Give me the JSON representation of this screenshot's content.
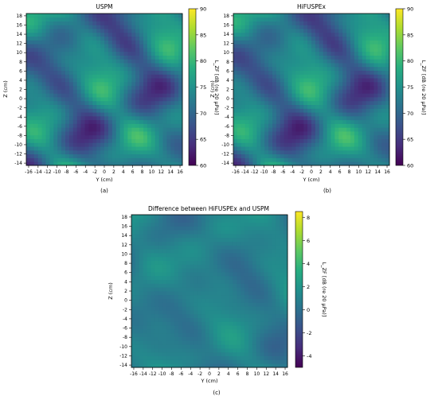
{
  "chart_data": [
    {
      "type": "heatmap",
      "panel_label": "(a)",
      "title": "USPM",
      "xlabel": "Y (cm)",
      "ylabel": "Z (cm)",
      "xlim": [
        -16.5,
        16.5
      ],
      "ylim": [
        -14.5,
        18.5
      ],
      "x_ticks": [
        -16,
        -14,
        -12,
        -10,
        -8,
        -6,
        -4,
        -2,
        0,
        2,
        4,
        6,
        8,
        10,
        12,
        14,
        16
      ],
      "y_ticks": [
        -14,
        -12,
        -10,
        -8,
        -6,
        -4,
        -2,
        0,
        2,
        4,
        6,
        8,
        10,
        12,
        14,
        16,
        18
      ],
      "colorbar": {
        "label": "L_ZF [dB (re 20 μPa)]",
        "range": [
          60,
          90
        ],
        "ticks": [
          60,
          65,
          70,
          75,
          80,
          85,
          90
        ]
      },
      "colormap": "viridis",
      "field": {
        "base": 72,
        "amp": 9,
        "seed": 1
      }
    },
    {
      "type": "heatmap",
      "panel_label": "(b)",
      "title": "HiFUSPEx",
      "xlabel": "Y (cm)",
      "ylabel": "Z (cm)",
      "xlim": [
        -16.5,
        16.5
      ],
      "ylim": [
        -14.5,
        18.5
      ],
      "x_ticks": [
        -16,
        -14,
        -12,
        -10,
        -8,
        -6,
        -4,
        -2,
        0,
        2,
        4,
        6,
        8,
        10,
        12,
        14,
        16
      ],
      "y_ticks": [
        -14,
        -12,
        -10,
        -8,
        -6,
        -4,
        -2,
        0,
        2,
        4,
        6,
        8,
        10,
        12,
        14,
        16,
        18
      ],
      "colorbar": {
        "label": "L_ZF [dB (re 20 μPa)]",
        "range": [
          60,
          90
        ],
        "ticks": [
          60,
          65,
          70,
          75,
          80,
          85,
          90
        ]
      },
      "colormap": "viridis",
      "field": {
        "base": 72,
        "amp": 9,
        "seed": 1
      }
    },
    {
      "type": "heatmap",
      "panel_label": "(c)",
      "title": "Difference between HiFUSPEx and USPM",
      "xlabel": "Y (cm)",
      "ylabel": "Z (cm)",
      "xlim": [
        -16.5,
        16.5
      ],
      "ylim": [
        -14.5,
        18.5
      ],
      "x_ticks": [
        -16,
        -14,
        -12,
        -10,
        -8,
        -6,
        -4,
        -2,
        0,
        2,
        4,
        6,
        8,
        10,
        12,
        14,
        16
      ],
      "y_ticks": [
        -14,
        -12,
        -10,
        -8,
        -6,
        -4,
        -2,
        0,
        2,
        4,
        6,
        8,
        10,
        12,
        14,
        16,
        18
      ],
      "colorbar": {
        "label": "L_ZF [dB (re 20 μPa)]",
        "range": [
          -5,
          8.5
        ],
        "ticks": [
          -4,
          -2,
          0,
          2,
          4,
          6,
          8
        ]
      },
      "colormap": "viridis",
      "field": {
        "base": 0.8,
        "amp": 1.6,
        "seed": 2
      }
    }
  ]
}
